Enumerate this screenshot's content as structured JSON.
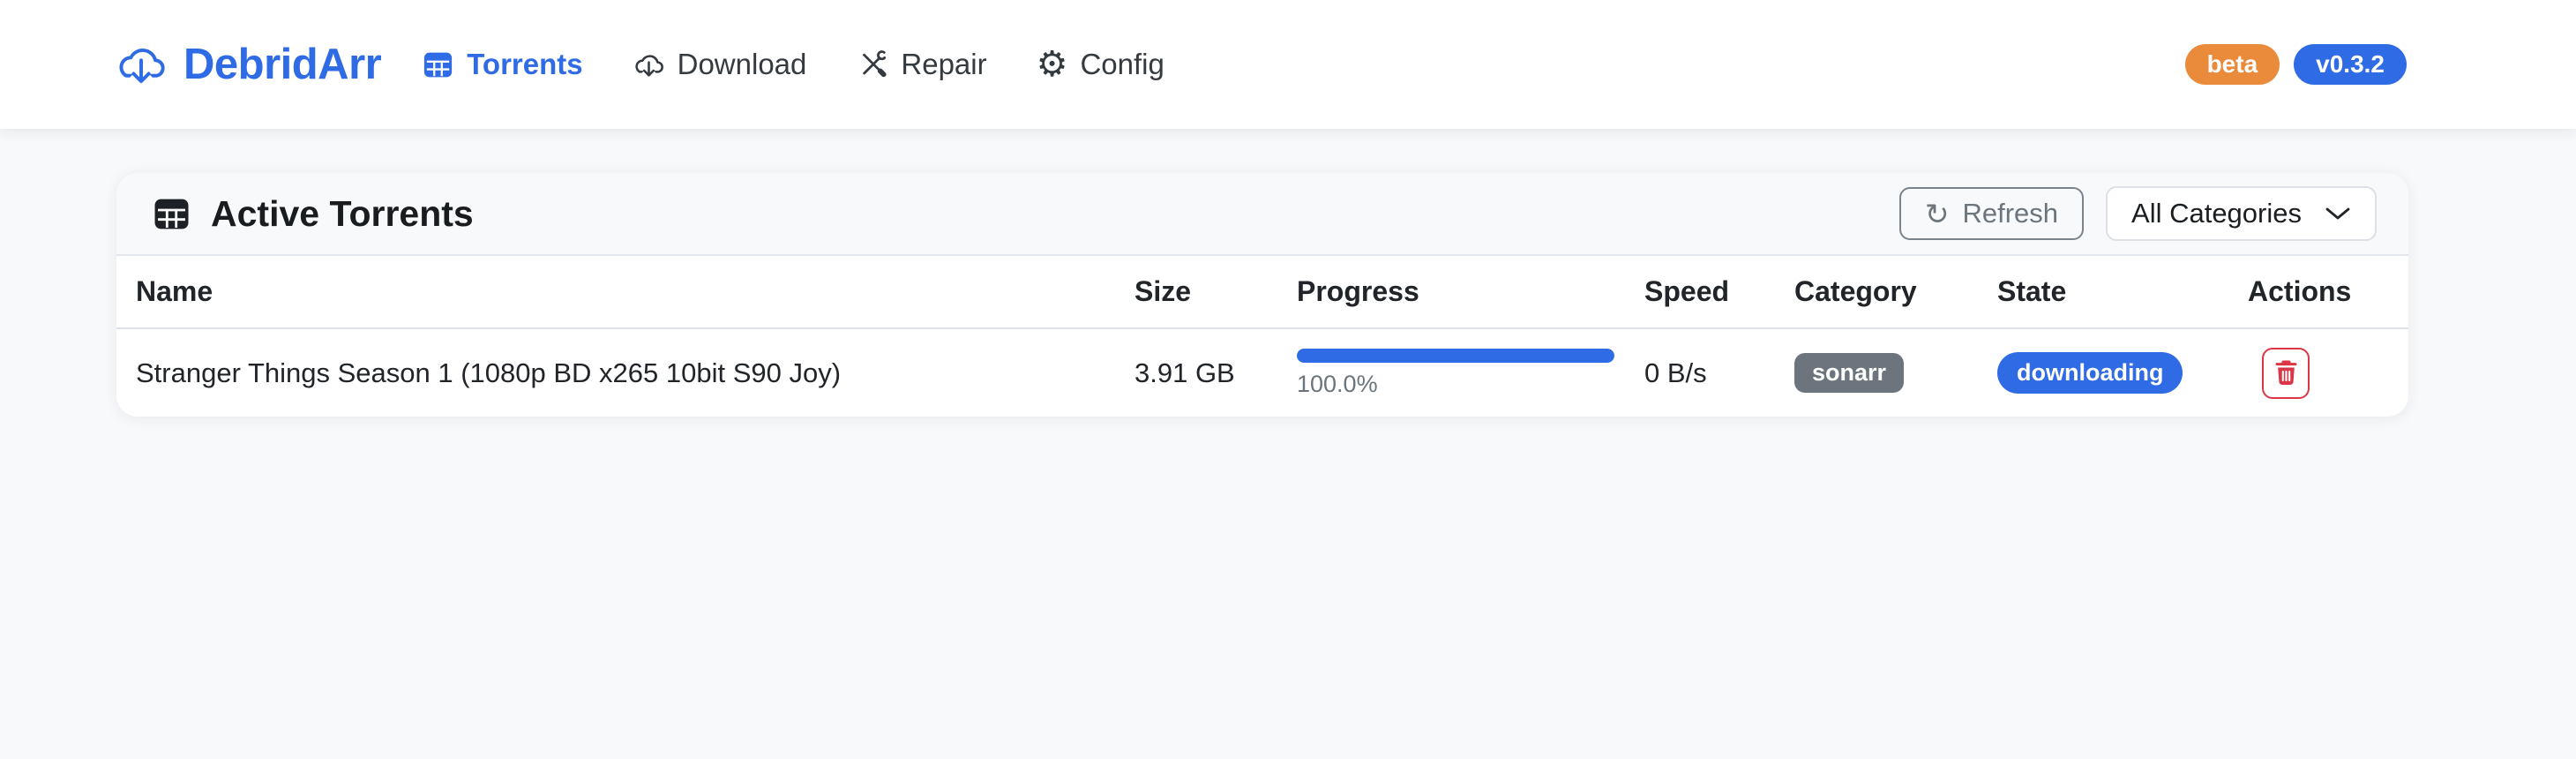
{
  "brand": {
    "name": "DebridArr"
  },
  "nav": {
    "items": [
      {
        "label": "Torrents",
        "icon": "table-icon",
        "active": true
      },
      {
        "label": "Download",
        "icon": "cloud-download-icon",
        "active": false
      },
      {
        "label": "Repair",
        "icon": "wrench-screwdriver-icon",
        "active": false
      },
      {
        "label": "Config",
        "icon": "gear-icon",
        "active": false
      }
    ],
    "badges": [
      {
        "label": "beta"
      },
      {
        "label": "v0.3.2"
      }
    ]
  },
  "panel": {
    "title": "Active Torrents",
    "refresh_button": "Refresh",
    "category_filter": {
      "selected": "All Categories"
    },
    "table": {
      "columns": [
        "Name",
        "Size",
        "Progress",
        "Speed",
        "Category",
        "State",
        "Actions"
      ],
      "rows": [
        {
          "name": "Stranger Things Season 1 (1080p BD x265 10bit S90 Joy)",
          "size": "3.91 GB",
          "progress_percent": 100.0,
          "progress_label": "100.0%",
          "speed": "0 B/s",
          "category": "sonarr",
          "state": "downloading"
        }
      ]
    }
  },
  "colors": {
    "accent": "#2f6be5",
    "beta": "#e98b3a",
    "category_badge": "#6c757d",
    "danger": "#dc3545"
  }
}
